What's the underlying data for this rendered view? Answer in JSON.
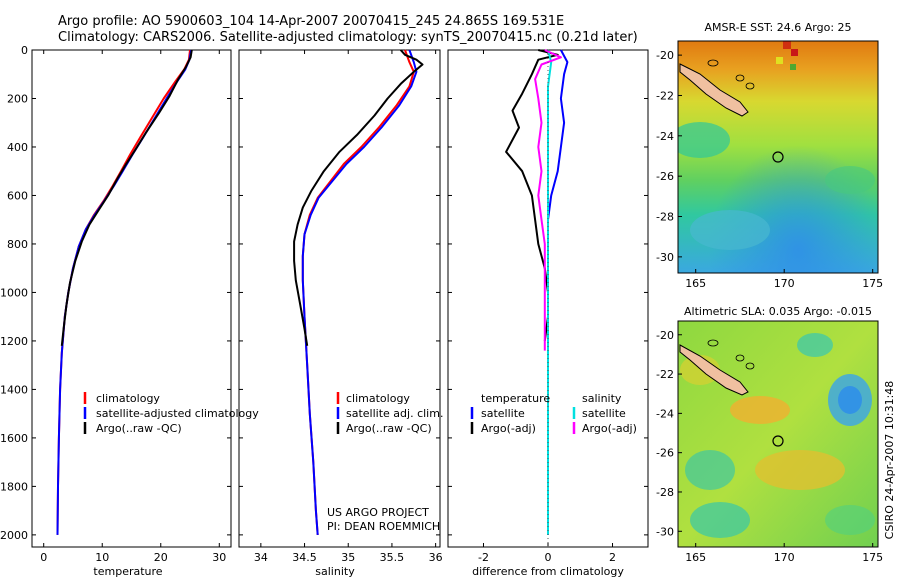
{
  "header": {
    "line1": "Argo profile: AO 5900603_104 14-Apr-2007 20070415_245 24.865S 169.531E",
    "line2": "Climatology: CARS2006. Satellite-adjusted climatology: synTS_20070415.nc (0.21d later)"
  },
  "colors": {
    "climatology": "#ff0000",
    "satellite": "#0000ff",
    "argo": "#000000",
    "salinity_satellite": "#00e0e0",
    "salinity_argo": "#ff00ff"
  },
  "chart_data": [
    {
      "type": "line",
      "xlabel": "temperature",
      "ylabel": "",
      "xlim": [
        -2,
        32
      ],
      "ylim": [
        2050,
        0
      ],
      "x_ticks": [
        0,
        10,
        20,
        30
      ],
      "y_ticks": [
        0,
        200,
        400,
        600,
        800,
        1000,
        1200,
        1400,
        1600,
        1800,
        2000
      ],
      "legend": [
        "climatology",
        "satellite-adjusted climatology",
        "Argo(..raw -QC)"
      ],
      "series": [
        {
          "name": "climatology",
          "color": "#ff0000",
          "points": [
            [
              25,
              0
            ],
            [
              24.8,
              40
            ],
            [
              24,
              80
            ],
            [
              22.5,
              130
            ],
            [
              20.5,
              200
            ],
            [
              18.5,
              280
            ],
            [
              16.5,
              360
            ],
            [
              14.8,
              430
            ],
            [
              13.2,
              500
            ],
            [
              11.8,
              560
            ],
            [
              10.3,
              620
            ],
            [
              8.6,
              680
            ],
            [
              7.2,
              740
            ],
            [
              6,
              810
            ],
            [
              5,
              900
            ],
            [
              4.2,
              1000
            ],
            [
              3.6,
              1100
            ],
            [
              3.1,
              1250
            ],
            [
              2.8,
              1400
            ],
            [
              2.6,
              1600
            ],
            [
              2.45,
              1800
            ],
            [
              2.35,
              2000
            ]
          ]
        },
        {
          "name": "satellite-adjusted climatology",
          "color": "#0000ff",
          "points": [
            [
              25.2,
              0
            ],
            [
              24.9,
              40
            ],
            [
              24.2,
              80
            ],
            [
              22.8,
              130
            ],
            [
              21,
              200
            ],
            [
              19,
              280
            ],
            [
              17,
              360
            ],
            [
              15.2,
              430
            ],
            [
              13.5,
              500
            ],
            [
              12,
              560
            ],
            [
              10.4,
              620
            ],
            [
              8.7,
              680
            ],
            [
              7.2,
              740
            ],
            [
              6,
              810
            ],
            [
              5,
              900
            ],
            [
              4.2,
              1000
            ],
            [
              3.6,
              1100
            ],
            [
              3.1,
              1250
            ],
            [
              2.8,
              1400
            ],
            [
              2.6,
              1600
            ],
            [
              2.45,
              1800
            ],
            [
              2.35,
              2000
            ]
          ]
        },
        {
          "name": "Argo(..raw -QC)",
          "color": "#000000",
          "points": [
            [
              25.3,
              0
            ],
            [
              25.1,
              30
            ],
            [
              24.3,
              70
            ],
            [
              23,
              120
            ],
            [
              21.5,
              190
            ],
            [
              19.7,
              260
            ],
            [
              17.5,
              340
            ],
            [
              15.7,
              410
            ],
            [
              14.1,
              470
            ],
            [
              12.6,
              530
            ],
            [
              11,
              600
            ],
            [
              9.4,
              660
            ],
            [
              7.8,
              720
            ],
            [
              6.5,
              790
            ],
            [
              5.4,
              870
            ],
            [
              4.5,
              960
            ],
            [
              3.9,
              1050
            ],
            [
              3.4,
              1150
            ],
            [
              3.1,
              1220
            ]
          ]
        }
      ]
    },
    {
      "type": "line",
      "xlabel": "salinity",
      "xlim": [
        33.75,
        36.05
      ],
      "ylim": [
        2050,
        0
      ],
      "x_ticks": [
        34,
        34.5,
        35,
        35.5,
        36
      ],
      "x_tick_labels": [
        "34",
        "34.5",
        "35",
        "35.5",
        "36"
      ],
      "legend": [
        "climatology",
        "satellite adj. clim.",
        "Argo(..raw -QC)"
      ],
      "annotation": [
        "US ARGO PROJECT",
        "PI: DEAN ROEMMICH"
      ],
      "series": [
        {
          "name": "climatology",
          "color": "#ff0000",
          "points": [
            [
              35.65,
              0
            ],
            [
              35.7,
              50
            ],
            [
              35.75,
              90
            ],
            [
              35.7,
              150
            ],
            [
              35.55,
              230
            ],
            [
              35.35,
              320
            ],
            [
              35.15,
              400
            ],
            [
              34.95,
              470
            ],
            [
              34.8,
              540
            ],
            [
              34.65,
              610
            ],
            [
              34.56,
              680
            ],
            [
              34.5,
              760
            ],
            [
              34.48,
              850
            ],
            [
              34.48,
              950
            ],
            [
              34.5,
              1100
            ],
            [
              34.53,
              1300
            ],
            [
              34.56,
              1500
            ],
            [
              34.6,
              1700
            ],
            [
              34.63,
              1900
            ],
            [
              34.65,
              2000
            ]
          ]
        },
        {
          "name": "satellite adj. clim.",
          "color": "#0000ff",
          "points": [
            [
              35.7,
              0
            ],
            [
              35.75,
              50
            ],
            [
              35.78,
              90
            ],
            [
              35.72,
              150
            ],
            [
              35.58,
              230
            ],
            [
              35.38,
              320
            ],
            [
              35.18,
              400
            ],
            [
              34.98,
              470
            ],
            [
              34.82,
              540
            ],
            [
              34.66,
              610
            ],
            [
              34.57,
              680
            ],
            [
              34.5,
              760
            ],
            [
              34.48,
              850
            ],
            [
              34.48,
              950
            ],
            [
              34.5,
              1100
            ],
            [
              34.53,
              1300
            ],
            [
              34.56,
              1500
            ],
            [
              34.6,
              1700
            ],
            [
              34.63,
              1900
            ],
            [
              34.65,
              2000
            ]
          ]
        },
        {
          "name": "Argo(..raw -QC)",
          "color": "#000000",
          "points": [
            [
              35.6,
              0
            ],
            [
              35.65,
              20
            ],
            [
              35.78,
              40
            ],
            [
              35.85,
              60
            ],
            [
              35.75,
              90
            ],
            [
              35.6,
              140
            ],
            [
              35.45,
              200
            ],
            [
              35.3,
              270
            ],
            [
              35.1,
              350
            ],
            [
              34.9,
              420
            ],
            [
              34.72,
              500
            ],
            [
              34.58,
              580
            ],
            [
              34.48,
              650
            ],
            [
              34.42,
              720
            ],
            [
              34.38,
              790
            ],
            [
              34.38,
              870
            ],
            [
              34.4,
              950
            ],
            [
              34.45,
              1050
            ],
            [
              34.5,
              1150
            ],
            [
              34.53,
              1220
            ]
          ]
        }
      ]
    },
    {
      "type": "line",
      "xlabel": "difference from climatology",
      "xlim": [
        -3.1,
        3.1
      ],
      "ylim": [
        2050,
        0
      ],
      "x_ticks": [
        -2,
        0,
        2
      ],
      "legend_headings": [
        "temperature",
        "salinity"
      ],
      "legend": [
        "satellite",
        "Argo(-adj)",
        "satellite",
        "Argo(-adj)"
      ],
      "series": [
        {
          "name": "satellite",
          "group": "temperature",
          "color": "#0000ff",
          "points": [
            [
              0.4,
              0
            ],
            [
              0.6,
              50
            ],
            [
              0.5,
              100
            ],
            [
              0.4,
              200
            ],
            [
              0.5,
              300
            ],
            [
              0.4,
              400
            ],
            [
              0.3,
              500
            ],
            [
              0.1,
              600
            ],
            [
              0,
              700
            ],
            [
              0,
              800
            ],
            [
              0,
              1000
            ],
            [
              0,
              1200
            ],
            [
              0,
              1600
            ],
            [
              0,
              2000
            ]
          ]
        },
        {
          "name": "Argo(-adj)",
          "group": "temperature",
          "color": "#000000",
          "points": [
            [
              -0.3,
              0
            ],
            [
              0.3,
              20
            ],
            [
              -0.3,
              40
            ],
            [
              -0.5,
              100
            ],
            [
              -0.8,
              180
            ],
            [
              -1.1,
              250
            ],
            [
              -0.9,
              320
            ],
            [
              -1.3,
              420
            ],
            [
              -0.8,
              500
            ],
            [
              -0.5,
              600
            ],
            [
              -0.4,
              700
            ],
            [
              -0.3,
              800
            ],
            [
              -0.1,
              900
            ],
            [
              0,
              1000
            ],
            [
              0,
              1100
            ],
            [
              -0.1,
              1200
            ]
          ]
        },
        {
          "name": "satellite",
          "group": "salinity",
          "color": "#00e0e0",
          "points": [
            [
              0,
              0
            ],
            [
              0.1,
              50
            ],
            [
              0,
              150
            ],
            [
              0,
              300
            ],
            [
              0,
              600
            ],
            [
              0,
              1000
            ],
            [
              0,
              1500
            ],
            [
              0,
              2000
            ]
          ]
        },
        {
          "name": "Argo(-adj)",
          "group": "salinity",
          "color": "#ff00ff",
          "points": [
            [
              -0.1,
              0
            ],
            [
              0.4,
              30
            ],
            [
              -0.2,
              60
            ],
            [
              -0.4,
              120
            ],
            [
              -0.3,
              200
            ],
            [
              -0.2,
              300
            ],
            [
              -0.3,
              400
            ],
            [
              -0.2,
              500
            ],
            [
              -0.3,
              600
            ],
            [
              -0.2,
              700
            ],
            [
              -0.1,
              800
            ],
            [
              -0.1,
              950
            ],
            [
              -0.1,
              1100
            ],
            [
              -0.1,
              1240
            ]
          ]
        }
      ]
    }
  ],
  "maps": [
    {
      "title": "AMSR-E SST: 24.6 Argo: 25",
      "x_ticks": [
        "165",
        "170",
        "175"
      ],
      "y_ticks": [
        "-20",
        "-22",
        "-24",
        "-26",
        "-28",
        "-30"
      ],
      "marker": {
        "lon": 169.5,
        "lat": -24.9
      },
      "palette": [
        "#e07a10",
        "#e8a020",
        "#d8d830",
        "#a0e040",
        "#60d060",
        "#30c8a0",
        "#3aa8e0"
      ]
    },
    {
      "title": "Altimetric SLA: 0.035 Argo: -0.015",
      "x_ticks": [
        "165",
        "170",
        "175"
      ],
      "y_ticks": [
        "-20",
        "-22",
        "-24",
        "-26",
        "-28",
        "-30"
      ],
      "marker": {
        "lon": 169.5,
        "lat": -24.9
      },
      "palette": [
        "#f0b030",
        "#d8d830",
        "#a8e040",
        "#60d060",
        "#38c8a8",
        "#3aa0e0"
      ]
    }
  ],
  "side_label": "CSIRO 24-Apr-2007 10:31:48"
}
